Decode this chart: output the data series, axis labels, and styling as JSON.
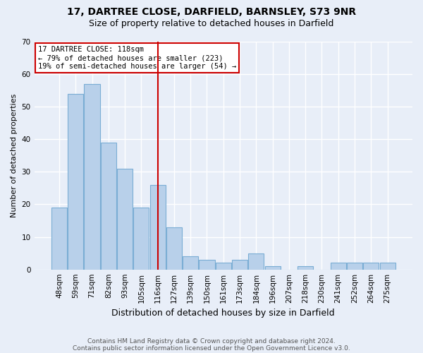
{
  "title": "17, DARTREE CLOSE, DARFIELD, BARNSLEY, S73 9NR",
  "subtitle": "Size of property relative to detached houses in Darfield",
  "xlabel": "Distribution of detached houses by size in Darfield",
  "ylabel": "Number of detached properties",
  "footnote1": "Contains HM Land Registry data © Crown copyright and database right 2024.",
  "footnote2": "Contains public sector information licensed under the Open Government Licence v3.0.",
  "categories": [
    "48sqm",
    "59sqm",
    "71sqm",
    "82sqm",
    "93sqm",
    "105sqm",
    "116sqm",
    "127sqm",
    "139sqm",
    "150sqm",
    "161sqm",
    "173sqm",
    "184sqm",
    "196sqm",
    "207sqm",
    "218sqm",
    "230sqm",
    "241sqm",
    "252sqm",
    "264sqm",
    "275sqm"
  ],
  "values": [
    19,
    54,
    57,
    39,
    31,
    19,
    26,
    13,
    4,
    3,
    2,
    3,
    5,
    1,
    0,
    1,
    0,
    2,
    2,
    2,
    2
  ],
  "bar_color": "#b8d0ea",
  "bar_edge_color": "#7aadd4",
  "highlight_index": 6,
  "highlight_line_color": "#cc0000",
  "annotation_text": "17 DARTREE CLOSE: 118sqm\n← 79% of detached houses are smaller (223)\n19% of semi-detached houses are larger (54) →",
  "annotation_box_color": "#ffffff",
  "annotation_box_edge": "#cc0000",
  "ylim": [
    0,
    70
  ],
  "background_color": "#e8eef8",
  "grid_color": "#ffffff",
  "title_fontsize": 10,
  "subtitle_fontsize": 9,
  "xlabel_fontsize": 9,
  "ylabel_fontsize": 8,
  "tick_fontsize": 7.5,
  "annot_fontsize": 7.5,
  "footnote_fontsize": 6.5
}
